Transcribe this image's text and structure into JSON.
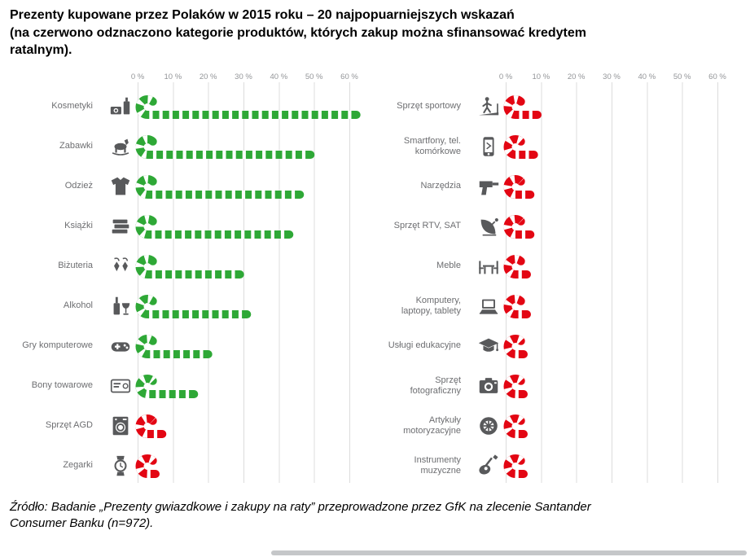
{
  "title": {
    "lines": [
      "Prezenty kupowane przez Polaków w 2015 roku – 20 najpopuarniejszych wskazań",
      "(na czerwono odznaczono kategorie produktów, których zakup można sfinansować kredytem",
      "ratalnym)."
    ]
  },
  "source": {
    "lines": [
      "Źródło: Badanie „Prezenty gwiazdkowe i zakupy na raty” przeprowadzone przez GfK na zlecenie Santander",
      "Consumer Banku (n=972)."
    ]
  },
  "axis": {
    "ticks": [
      "0 %",
      "10 %",
      "20 %",
      "30 %",
      "40 %",
      "50 %",
      "60 %"
    ],
    "min": 0,
    "max": 60,
    "step": 10,
    "unit": "%"
  },
  "colors": {
    "green": "#2ea836",
    "red": "#e30613",
    "label_gray": "#6d6e71",
    "icon_gray": "#58595b",
    "grid_gray": "#dcdcdc",
    "tick_gray": "#939598"
  },
  "chart_data": {
    "type": "bar",
    "orientation": "horizontal",
    "bar_style": "candy-cane",
    "unit": "%",
    "xlim": [
      0,
      60
    ],
    "tick_step": 10,
    "grid": true,
    "red_meaning": "kategorie produktów, których zakup można sfinansować kredytem ratalnym",
    "panels": [
      {
        "name": "left",
        "rows": [
          {
            "label": "Kosmetyki",
            "value": 62,
            "color": "green",
            "icon": "cosmetics-icon"
          },
          {
            "label": "Zabawki",
            "value": 49,
            "color": "green",
            "icon": "rocking-horse-icon"
          },
          {
            "label": "Odzież",
            "value": 46,
            "color": "green",
            "icon": "clothing-icon"
          },
          {
            "label": "Książki",
            "value": 43,
            "color": "green",
            "icon": "books-icon"
          },
          {
            "label": "Biżuteria",
            "value": 29,
            "color": "green",
            "icon": "earrings-icon"
          },
          {
            "label": "Alkohol",
            "value": 31,
            "color": "green",
            "icon": "alcohol-icon"
          },
          {
            "label": "Gry komputerowe",
            "value": 20,
            "color": "green",
            "icon": "gamepad-icon"
          },
          {
            "label": "Bony towarowe",
            "value": 16,
            "color": "green",
            "icon": "gift-card-icon"
          },
          {
            "label": "Sprzęt AGD",
            "value": 7,
            "color": "red",
            "icon": "washing-machine-icon"
          },
          {
            "label": "Zegarki",
            "value": 5,
            "color": "red",
            "icon": "watch-icon"
          }
        ]
      },
      {
        "name": "right",
        "rows": [
          {
            "label": "Sprzęt sportowy",
            "value": 9,
            "color": "red",
            "icon": "treadmill-icon"
          },
          {
            "label": "Smartfony, tel. komórkowe",
            "value": 8,
            "color": "red",
            "icon": "smartphone-icon"
          },
          {
            "label": "Narzędzia",
            "value": 7,
            "color": "red",
            "icon": "drill-icon"
          },
          {
            "label": "Sprzęt RTV, SAT",
            "value": 7,
            "color": "red",
            "icon": "satellite-dish-icon"
          },
          {
            "label": "Meble",
            "value": 6,
            "color": "red",
            "icon": "furniture-icon"
          },
          {
            "label": "Komputery, laptopy, tablety",
            "value": 6,
            "color": "red",
            "icon": "laptop-icon"
          },
          {
            "label": "Usługi edukacyjne",
            "value": 5,
            "color": "red",
            "icon": "graduation-cap-icon"
          },
          {
            "label": "Sprzęt fotograficzny",
            "value": 5,
            "color": "red",
            "icon": "camera-icon"
          },
          {
            "label": "Artykuły motoryzacyjne",
            "value": 4,
            "color": "red",
            "icon": "wheel-icon"
          },
          {
            "label": "Instrumenty muzyczne",
            "value": 4,
            "color": "red",
            "icon": "guitar-icon"
          }
        ]
      }
    ]
  }
}
